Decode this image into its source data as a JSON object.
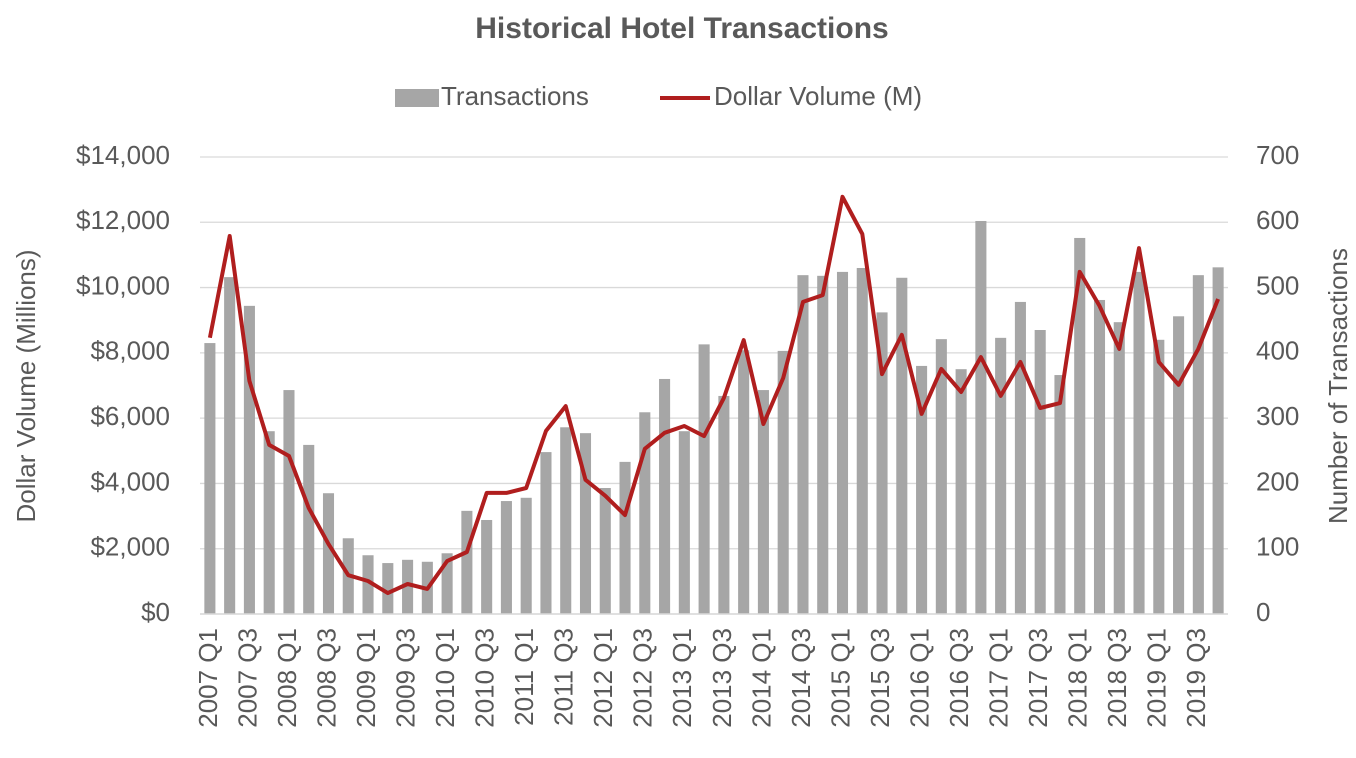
{
  "chart_data": {
    "type": "bar-line",
    "title": "Historical Hotel Transactions",
    "y_label": "Dollar Volume (Millions)",
    "y2_label": "Number of Transactions",
    "categories": [
      "2007 Q1",
      null,
      "2007 Q3",
      null,
      "2008 Q1",
      null,
      "2008 Q3",
      null,
      "2009 Q1",
      null,
      "2009 Q3",
      null,
      "2010 Q1",
      null,
      "2010 Q3",
      null,
      "2011 Q1",
      null,
      "2011 Q3",
      null,
      "2012 Q1",
      null,
      "2012 Q3",
      null,
      "2013 Q1",
      null,
      "2013 Q3",
      null,
      "2014 Q1",
      null,
      "2014 Q3",
      null,
      "2015 Q1",
      null,
      "2015 Q3",
      null,
      "2016 Q1",
      null,
      "2016 Q3",
      null,
      "2017 Q1",
      null,
      "2017 Q3",
      null,
      "2018 Q1",
      null,
      "2018 Q3",
      null,
      "2019 Q1",
      null,
      "2019 Q3",
      null
    ],
    "series": [
      {
        "name": "Transactions",
        "type": "bar",
        "axis": "y2",
        "color": "#a6a6a6",
        "values": [
          415,
          516,
          472,
          280,
          343,
          259,
          185,
          116,
          90,
          78,
          83,
          80,
          93,
          158,
          144,
          173,
          178,
          248,
          286,
          277,
          193,
          233,
          309,
          360,
          280,
          413,
          334,
          404,
          343,
          403,
          519,
          518,
          524,
          530,
          462,
          515,
          380,
          421,
          375,
          602,
          423,
          478,
          435,
          366,
          576,
          481,
          447,
          524,
          420,
          456,
          519,
          531
        ]
      },
      {
        "name": "Dollar Volume (M)",
        "type": "line",
        "color": "#b01e1e",
        "values": [
          8460,
          11580,
          7140,
          5180,
          4840,
          3250,
          2140,
          1190,
          1010,
          640,
          920,
          770,
          1620,
          1900,
          3710,
          3710,
          3860,
          5610,
          6370,
          4110,
          3620,
          3030,
          5060,
          5550,
          5760,
          5450,
          6620,
          8390,
          5820,
          7230,
          9560,
          9770,
          12780,
          11640,
          7350,
          8550,
          6130,
          7510,
          6800,
          7870,
          6680,
          7720,
          6310,
          6460,
          10480,
          9440,
          8120,
          11210,
          7720,
          7020,
          8120,
          9650
        ]
      }
    ],
    "ylim": [
      0,
      14000
    ],
    "yticks": [
      {
        "value": 0,
        "label": "$0"
      },
      {
        "value": 2000,
        "label": "$2,000"
      },
      {
        "value": 4000,
        "label": "$4,000"
      },
      {
        "value": 6000,
        "label": "$6,000"
      },
      {
        "value": 8000,
        "label": "$8,000"
      },
      {
        "value": 10000,
        "label": "$10,000"
      },
      {
        "value": 12000,
        "label": "$12,000"
      },
      {
        "value": 14000,
        "label": "$14,000"
      }
    ],
    "y2lim": [
      0,
      700
    ],
    "y2ticks": [
      0,
      100,
      200,
      300,
      400,
      500,
      600,
      700
    ],
    "grid": true
  }
}
